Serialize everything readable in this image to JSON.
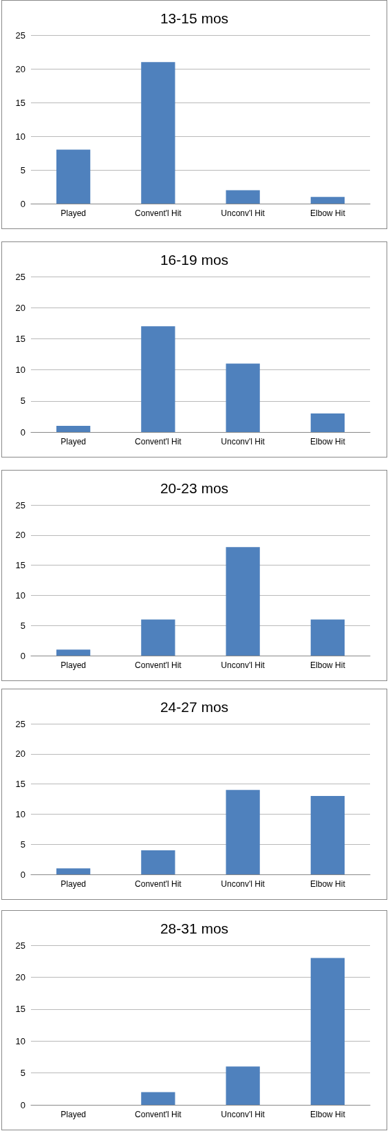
{
  "chart_data": [
    {
      "type": "bar",
      "title": "13-15 mos",
      "categories": [
        "Played",
        "Convent'l Hit",
        "Unconv'l Hit",
        "Elbow Hit"
      ],
      "values": [
        8,
        21,
        2,
        1
      ],
      "color": "#4f81bd",
      "ylim": [
        0,
        25
      ],
      "yticks": [
        0,
        5,
        10,
        15,
        20,
        25
      ],
      "grid": "y"
    },
    {
      "type": "bar",
      "title": "16-19 mos",
      "categories": [
        "Played",
        "Convent'l Hit",
        "Unconv'l Hit",
        "Elbow Hit"
      ],
      "values": [
        1,
        17,
        11,
        3
      ],
      "color": "#4f81bd",
      "ylim": [
        0,
        25
      ],
      "yticks": [
        0,
        5,
        10,
        15,
        20,
        25
      ],
      "grid": "y"
    },
    {
      "type": "bar",
      "title": "20-23 mos",
      "categories": [
        "Played",
        "Convent'l Hit",
        "Unconv'l Hit",
        "Elbow Hit"
      ],
      "values": [
        1,
        6,
        18,
        6
      ],
      "color": "#4f81bd",
      "ylim": [
        0,
        25
      ],
      "yticks": [
        0,
        5,
        10,
        15,
        20,
        25
      ],
      "grid": "y"
    },
    {
      "type": "bar",
      "title": "24-27 mos",
      "categories": [
        "Played",
        "Convent'l Hit",
        "Unconv'l Hit",
        "Elbow Hit"
      ],
      "values": [
        1,
        4,
        14,
        13
      ],
      "color": "#4f81bd",
      "ylim": [
        0,
        25
      ],
      "yticks": [
        0,
        5,
        10,
        15,
        20,
        25
      ],
      "grid": "y"
    },
    {
      "type": "bar",
      "title": "28-31 mos",
      "categories": [
        "Played",
        "Convent'l Hit",
        "Unconv'l Hit",
        "Elbow Hit"
      ],
      "values": [
        0,
        2,
        6,
        23
      ],
      "color": "#4f81bd",
      "ylim": [
        0,
        25
      ],
      "yticks": [
        0,
        5,
        10,
        15,
        20,
        25
      ],
      "grid": "y"
    }
  ]
}
